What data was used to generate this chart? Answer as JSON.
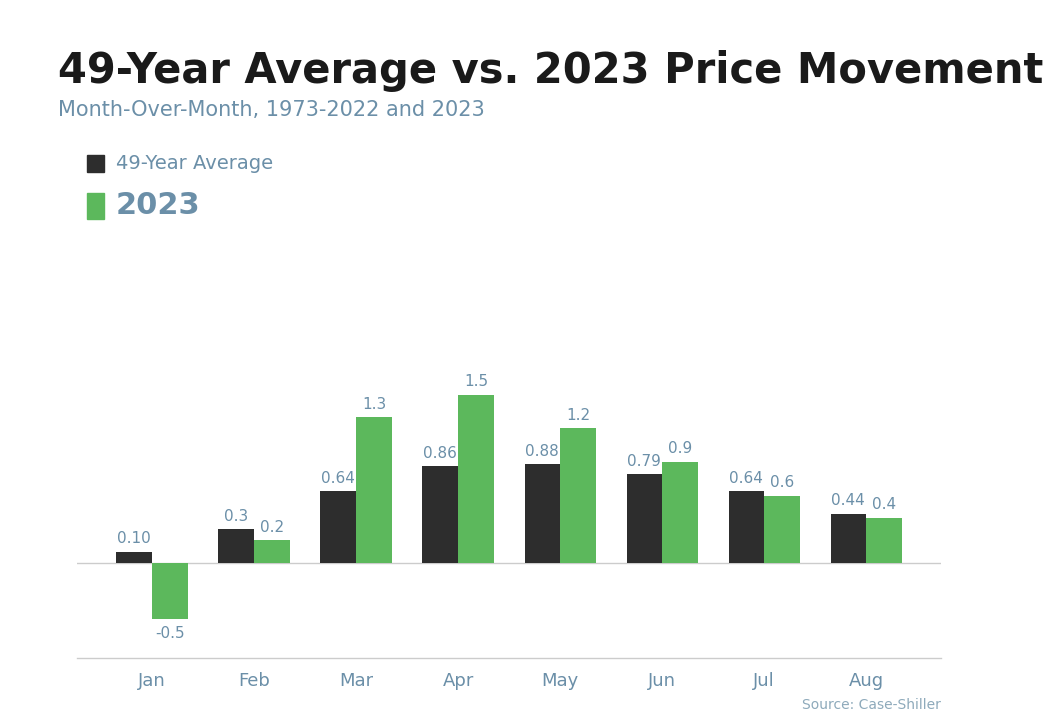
{
  "title": "49-Year Average vs. 2023 Price Movement",
  "subtitle": "Month-Over-Month, 1973-2022 and 2023",
  "source": "Source: Case-Shiller",
  "categories": [
    "Jan",
    "Feb",
    "Mar",
    "Apr",
    "May",
    "Jun",
    "Jul",
    "Aug"
  ],
  "avg_values": [
    0.1,
    0.3,
    0.64,
    0.86,
    0.88,
    0.79,
    0.64,
    0.44
  ],
  "year2023_values": [
    -0.5,
    0.2,
    1.3,
    1.5,
    1.2,
    0.9,
    0.6,
    0.4
  ],
  "avg_color": "#2d2d2d",
  "year2023_color": "#5cb85c",
  "legend_avg_label": "49-Year Average",
  "legend_2023_label": "2023",
  "top_bar_color": "#29a8c4",
  "background_color": "#ffffff",
  "title_fontsize": 30,
  "subtitle_fontsize": 15,
  "legend_color": "#6b8fa8",
  "bar_width": 0.35,
  "ylim": [
    -0.85,
    1.85
  ],
  "label_fontsize": 11,
  "tick_color": "#6b8fa8",
  "source_color": "#8eaabb"
}
